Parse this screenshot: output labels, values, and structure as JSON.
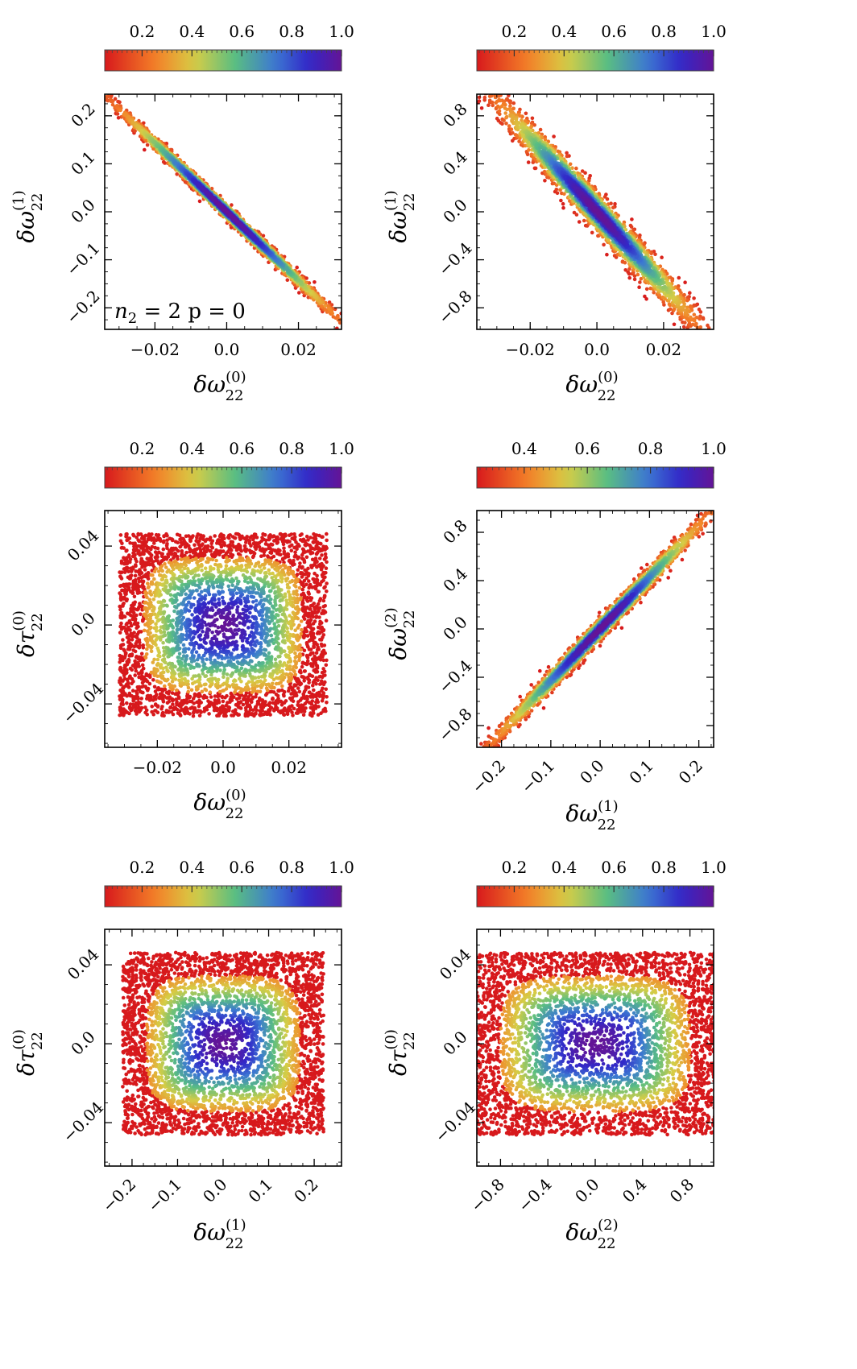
{
  "chart_data": [
    {
      "type": "scatter",
      "xlabel": "δω(0)22",
      "ylabel": "δω(1)22",
      "xlabel_parts": {
        "base": "δω",
        "sup": "(0)",
        "sub": "22"
      },
      "ylabel_parts": {
        "base": "δω",
        "sup": "(1)",
        "sub": "22"
      },
      "xlim": [
        -0.034,
        0.032
      ],
      "ylim": [
        -0.245,
        0.245
      ],
      "xticks": [
        -0.02,
        0.0,
        0.02
      ],
      "xtick_labels": [
        "−0.02",
        "0.0",
        "0.02"
      ],
      "yticks": [
        -0.2,
        -0.1,
        0.0,
        0.1,
        0.2
      ],
      "ytick_labels": [
        "−0.2",
        "−0.1",
        "0.0",
        "0.1",
        "0.2"
      ],
      "rotate_x": false,
      "colorbar": {
        "colormap": "rainbow_r",
        "range": [
          0.05,
          1.0
        ],
        "ticks": [
          0.2,
          0.4,
          0.6,
          0.8,
          1.0
        ],
        "tick_labels": [
          "0.2",
          "0.4",
          "0.6",
          "0.8",
          "1.0"
        ]
      },
      "distribution": {
        "shape": "correlated",
        "mean": [
          0.0,
          0.0
        ],
        "sd": [
          0.0148,
          0.106
        ],
        "correlation": -0.997,
        "points": 2600
      },
      "annotation": "n2 = 2  p = 0",
      "annotation_parts": {
        "n": "n",
        "sub": "2",
        "rest": " = 2  p = 0"
      }
    },
    {
      "type": "scatter",
      "xlabel": "δω(0)22",
      "ylabel": "δω(1)22",
      "xlabel_parts": {
        "base": "δω",
        "sup": "(0)",
        "sub": "22"
      },
      "ylabel_parts": {
        "base": "δω",
        "sup": "(1)",
        "sub": "22"
      },
      "xlim": [
        -0.036,
        0.035
      ],
      "ylim": [
        -0.98,
        0.98
      ],
      "xticks": [
        -0.02,
        0.0,
        0.02
      ],
      "xtick_labels": [
        "−0.02",
        "0.0",
        "0.02"
      ],
      "yticks": [
        -0.8,
        -0.4,
        0.0,
        0.4,
        0.8
      ],
      "ytick_labels": [
        "−0.8",
        "−0.4",
        "0.0",
        "0.4",
        "0.8"
      ],
      "rotate_x": false,
      "colorbar": {
        "colormap": "rainbow_r",
        "range": [
          0.05,
          1.0
        ],
        "ticks": [
          0.2,
          0.4,
          0.6,
          0.8,
          1.0
        ],
        "tick_labels": [
          "0.2",
          "0.4",
          "0.6",
          "0.8",
          "1.0"
        ]
      },
      "distribution": {
        "shape": "correlated",
        "mean": [
          0.0,
          0.0
        ],
        "sd": [
          0.0145,
          0.45
        ],
        "correlation": -0.985,
        "points": 3000
      }
    },
    {
      "type": "scatter",
      "xlabel": "δω(0)22",
      "ylabel": "δτ(0)22",
      "xlabel_parts": {
        "base": "δω",
        "sup": "(0)",
        "sub": "22"
      },
      "ylabel_parts": {
        "base": "δτ",
        "sup": "(0)",
        "sub": "22"
      },
      "xlim": [
        -0.036,
        0.036
      ],
      "ylim": [
        -0.062,
        0.058
      ],
      "xticks": [
        -0.02,
        0.0,
        0.02
      ],
      "xtick_labels": [
        "−0.02",
        "0.0",
        "0.02"
      ],
      "yticks": [
        -0.04,
        0.0,
        0.04
      ],
      "ytick_labels": [
        "−0.04",
        "0.0",
        "0.04"
      ],
      "rotate_x": false,
      "colorbar": {
        "colormap": "rainbow_r",
        "range": [
          0.05,
          1.0
        ],
        "ticks": [
          0.2,
          0.4,
          0.6,
          0.8,
          1.0
        ],
        "tick_labels": [
          "0.2",
          "0.4",
          "0.6",
          "0.8",
          "1.0"
        ]
      },
      "distribution": {
        "shape": "box",
        "mean": [
          0.0,
          0.0
        ],
        "half_width": [
          0.03,
          0.044
        ],
        "points": 4200
      }
    },
    {
      "type": "scatter",
      "xlabel": "δω(1)22",
      "ylabel": "δω(2)22",
      "xlabel_parts": {
        "base": "δω",
        "sup": "(1)",
        "sub": "22"
      },
      "ylabel_parts": {
        "base": "δω",
        "sup": "(2)",
        "sub": "22"
      },
      "xlim": [
        -0.25,
        0.23
      ],
      "ylim": [
        -0.98,
        0.98
      ],
      "xticks": [
        -0.2,
        -0.1,
        0.0,
        0.1,
        0.2
      ],
      "xtick_labels": [
        "−0.2",
        "−0.1",
        "0.0",
        "0.1",
        "0.2"
      ],
      "yticks": [
        -0.8,
        -0.4,
        0.0,
        0.4,
        0.8
      ],
      "ytick_labels": [
        "−0.8",
        "−0.4",
        "0.0",
        "0.4",
        "0.8"
      ],
      "rotate_x": true,
      "colorbar": {
        "colormap": "rainbow_r",
        "range": [
          0.25,
          1.0
        ],
        "ticks": [
          0.4,
          0.6,
          0.8,
          1.0
        ],
        "tick_labels": [
          "0.4",
          "0.6",
          "0.8",
          "1.0"
        ]
      },
      "distribution": {
        "shape": "correlated",
        "mean": [
          0.0,
          0.0
        ],
        "sd": [
          0.105,
          0.45
        ],
        "correlation": 0.995,
        "points": 2600
      }
    },
    {
      "type": "scatter",
      "xlabel": "δω(1)22",
      "ylabel": "δτ(0)22",
      "xlabel_parts": {
        "base": "δω",
        "sup": "(1)",
        "sub": "22"
      },
      "ylabel_parts": {
        "base": "δτ",
        "sup": "(0)",
        "sub": "22"
      },
      "xlim": [
        -0.26,
        0.26
      ],
      "ylim": [
        -0.062,
        0.058
      ],
      "xticks": [
        -0.2,
        -0.1,
        0.0,
        0.1,
        0.2
      ],
      "xtick_labels": [
        "−0.2",
        "−0.1",
        "0.0",
        "0.1",
        "0.2"
      ],
      "yticks": [
        -0.04,
        0.0,
        0.04
      ],
      "ytick_labels": [
        "−0.04",
        "0.0",
        "0.04"
      ],
      "rotate_x": true,
      "colorbar": {
        "colormap": "rainbow_r",
        "range": [
          0.05,
          1.0
        ],
        "ticks": [
          0.2,
          0.4,
          0.6,
          0.8,
          1.0
        ],
        "tick_labels": [
          "0.2",
          "0.4",
          "0.6",
          "0.8",
          "1.0"
        ]
      },
      "distribution": {
        "shape": "box",
        "mean": [
          0.0,
          0.0
        ],
        "half_width": [
          0.21,
          0.044
        ],
        "points": 4200
      }
    },
    {
      "type": "scatter",
      "xlabel": "δω(2)22",
      "ylabel": "δτ(0)22",
      "xlabel_parts": {
        "base": "δω",
        "sup": "(2)",
        "sub": "22"
      },
      "ylabel_parts": {
        "base": "δτ",
        "sup": "(0)",
        "sub": "22"
      },
      "xlim": [
        -1.0,
        1.0
      ],
      "ylim": [
        -0.062,
        0.058
      ],
      "xticks": [
        -0.8,
        -0.4,
        0.0,
        0.4,
        0.8
      ],
      "xtick_labels": [
        "−0.8",
        "−0.4",
        "0.0",
        "0.4",
        "0.8"
      ],
      "yticks": [
        -0.04,
        0.0,
        0.04
      ],
      "ytick_labels": [
        "−0.04",
        "0.0",
        "0.04"
      ],
      "rotate_x": true,
      "colorbar": {
        "colormap": "rainbow_r",
        "range": [
          0.05,
          1.0
        ],
        "ticks": [
          0.2,
          0.4,
          0.6,
          0.8,
          1.0
        ],
        "tick_labels": [
          "0.2",
          "0.4",
          "0.6",
          "0.8",
          "1.0"
        ]
      },
      "distribution": {
        "shape": "box",
        "mean": [
          0.0,
          0.0
        ],
        "half_width": [
          1.0,
          0.044
        ],
        "points": 4400
      }
    }
  ]
}
